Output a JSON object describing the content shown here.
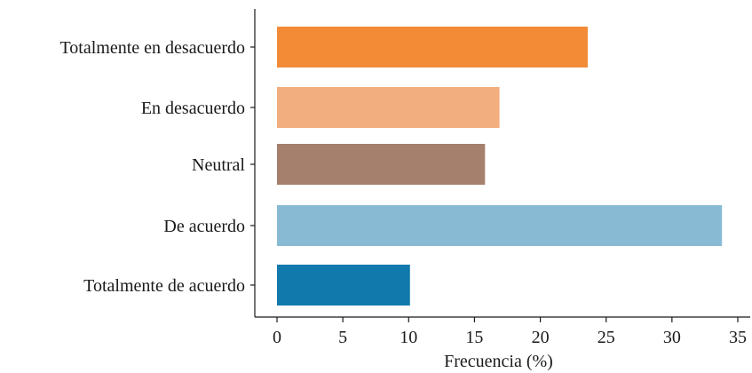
{
  "chart_data": {
    "type": "bar",
    "orientation": "horizontal",
    "categories": [
      "Totalmente en desacuerdo",
      "En desacuerdo",
      "Neutral",
      "De acuerdo",
      "Totalmente de acuerdo"
    ],
    "values": [
      23.6,
      16.9,
      15.8,
      33.8,
      10.1
    ],
    "colors": [
      "#f28a36",
      "#f2ae7e",
      "#a5806c",
      "#88bad3",
      "#1179ab"
    ],
    "xlabel": "Frecuencia (%)",
    "ylabel": "",
    "xlim": [
      0,
      35
    ],
    "xticks": [
      0,
      5,
      10,
      15,
      20,
      25,
      30,
      35
    ],
    "xtick_labels": [
      "0",
      "5",
      "10",
      "15",
      "20",
      "25",
      "30",
      "35"
    ],
    "grid": false,
    "legend": "none"
  }
}
